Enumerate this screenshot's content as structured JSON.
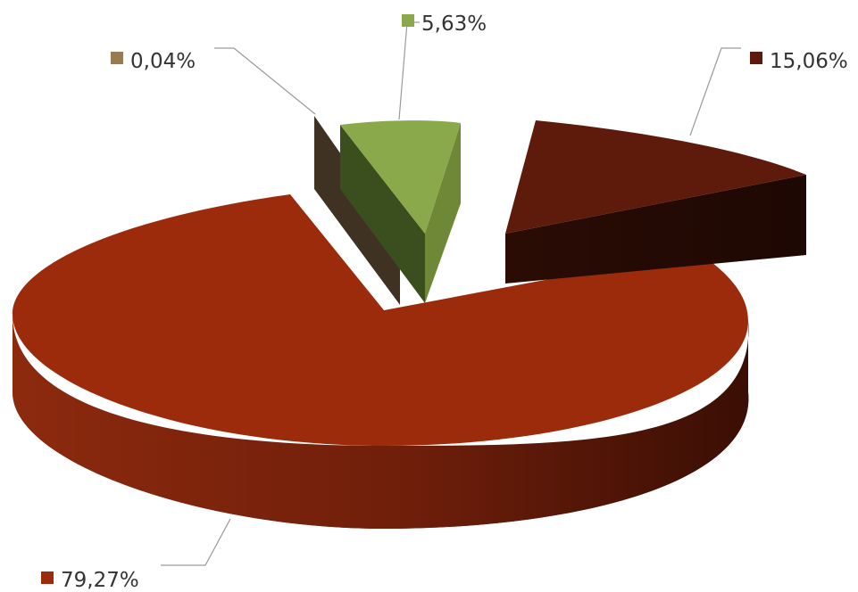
{
  "chart_data": {
    "type": "pie",
    "three_d": true,
    "exploded": true,
    "title": "",
    "legend": "none",
    "slices": [
      {
        "label": "79,27%",
        "value": 79.27,
        "color": "#9C2B0C"
      },
      {
        "label": "15,06%",
        "value": 15.06,
        "color": "#5E1A0A"
      },
      {
        "label": "5,63%",
        "value": 5.63,
        "color": "#8AA94B"
      },
      {
        "label": "0,04%",
        "value": 0.04,
        "color": "#9A7B4F"
      }
    ]
  }
}
